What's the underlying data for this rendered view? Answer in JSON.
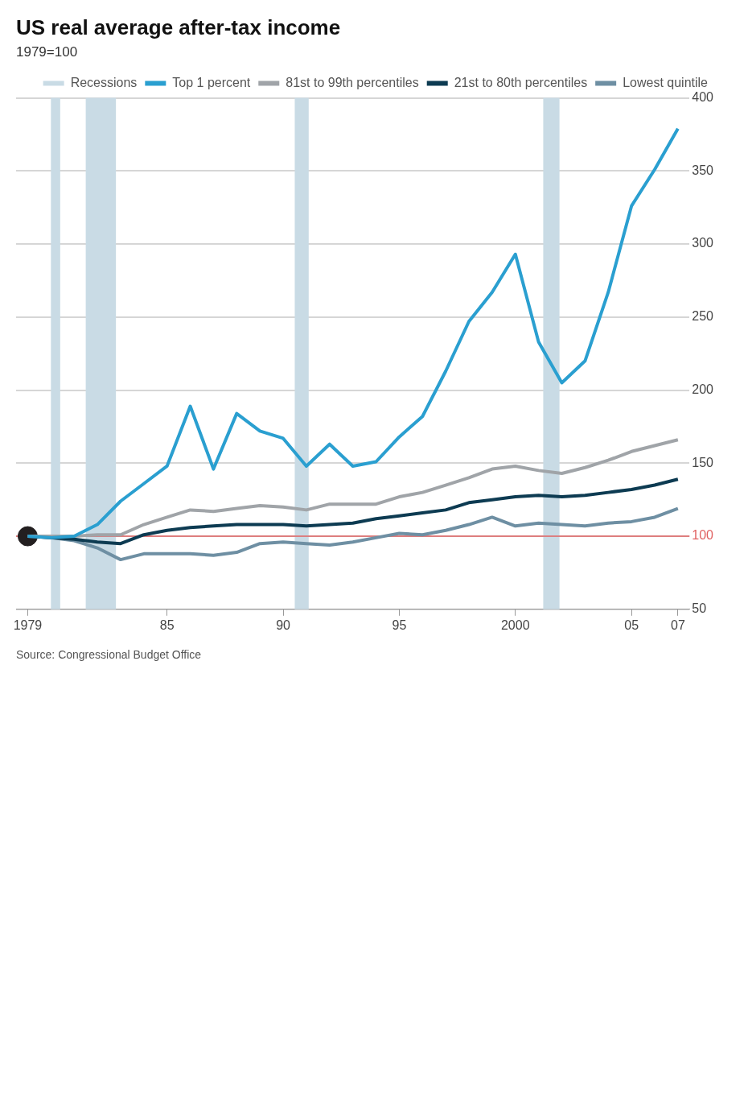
{
  "chart_data": {
    "type": "line",
    "title": "US real average after-tax income",
    "subtitle": "1979=100",
    "x": [
      1979,
      1980,
      1981,
      1982,
      1983,
      1984,
      1985,
      1986,
      1987,
      1988,
      1989,
      1990,
      1991,
      1992,
      1993,
      1994,
      1995,
      1996,
      1997,
      1998,
      1999,
      2000,
      2001,
      2002,
      2003,
      2004,
      2005,
      2006,
      2007
    ],
    "xlim": [
      1978.5,
      2007.5
    ],
    "xticks": [
      1979,
      {
        "value": 1985,
        "label": "85"
      },
      {
        "value": 1990,
        "label": "90"
      },
      {
        "value": 1995,
        "label": "95"
      },
      2000,
      {
        "value": 2005,
        "label": "05"
      },
      {
        "value": 2007,
        "label": "07"
      }
    ],
    "ylim": [
      50,
      400
    ],
    "yticks": [
      50,
      100,
      150,
      200,
      250,
      300,
      350,
      400
    ],
    "grid": "y",
    "legend": "top right",
    "marker": "none",
    "series": [
      {
        "name": "Top 1 percent",
        "color": "#2a9fd0",
        "values": [
          100,
          99,
          100,
          108,
          124,
          136,
          148,
          189,
          146,
          184,
          172,
          167,
          148,
          163,
          148,
          151,
          168,
          182,
          213,
          247,
          267,
          293,
          233,
          205,
          220,
          267,
          326,
          351,
          379
        ]
      },
      {
        "name": "81st to 99th percentiles",
        "color": "#a0a4a8",
        "values": [
          100,
          100,
          100,
          101,
          101,
          108,
          113,
          118,
          117,
          119,
          121,
          120,
          118,
          122,
          122,
          122,
          127,
          130,
          135,
          140,
          146,
          148,
          145,
          143,
          147,
          152,
          158,
          162,
          166
        ]
      },
      {
        "name": "21st to 80th percentiles",
        "color": "#0d3b52",
        "values": [
          100,
          99,
          98,
          96,
          95,
          101,
          104,
          106,
          107,
          108,
          108,
          108,
          107,
          108,
          109,
          112,
          114,
          116,
          118,
          123,
          125,
          127,
          128,
          127,
          128,
          130,
          132,
          135,
          139
        ]
      },
      {
        "name": "Lowest quintile",
        "color": "#6e8fa3",
        "values": [
          100,
          99,
          97,
          92,
          84,
          88,
          88,
          88,
          87,
          89,
          95,
          96,
          95,
          94,
          96,
          99,
          102,
          101,
          104,
          108,
          113,
          107,
          109,
          108,
          107,
          109,
          110,
          113,
          119
        ]
      },
      {
        "type": "scatter",
        "marker": "circle",
        "color": "#231f20",
        "x": [
          1979
        ],
        "values": [
          100
        ]
      }
    ],
    "ref_lines": [
      {
        "axis": "y",
        "value": 100,
        "color": "#e06060"
      }
    ],
    "bands": [
      {
        "axis": "x",
        "from": 1980.0,
        "to": 1980.4,
        "label": "Recessions",
        "color": "#c9dbe5"
      },
      {
        "axis": "x",
        "from": 1981.5,
        "to": 1982.8,
        "color": "#c9dbe5"
      },
      {
        "axis": "x",
        "from": 1990.5,
        "to": 1991.1,
        "color": "#c9dbe5"
      },
      {
        "axis": "x",
        "from": 2001.2,
        "to": 2001.9,
        "color": "#c9dbe5"
      }
    ],
    "annotations": [
      "Source: Congressional Budget Office"
    ]
  }
}
